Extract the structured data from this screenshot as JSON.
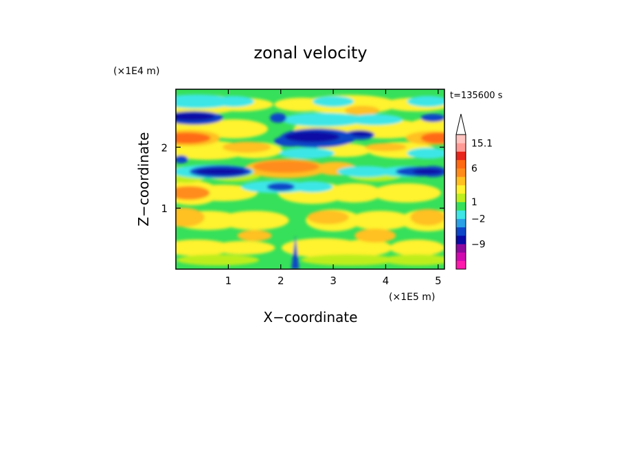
{
  "chart_data": {
    "type": "heatmap",
    "title": "zonal velocity",
    "xlabel": "X−coordinate",
    "ylabel": "Z−coordinate",
    "x_unit": "(×1E5 m)",
    "y_unit": "(×1E4 m)",
    "time_label": "t=135600 s",
    "xlim": [
      0,
      5.12
    ],
    "ylim": [
      0,
      2.95
    ],
    "x_ticks": [
      1,
      2,
      3,
      4,
      5
    ],
    "y_ticks": [
      1,
      2
    ],
    "colorbar": {
      "levels": [
        -15,
        -12,
        -9,
        -6,
        -4,
        -2,
        -1,
        1,
        2,
        3,
        4,
        6,
        9,
        12,
        15.1
      ],
      "colors": [
        "#ff1aae",
        "#d10ab0",
        "#8e0a9f",
        "#0a0aa6",
        "#0d46c8",
        "#2aa0e6",
        "#3ee6e6",
        "#36e05a",
        "#bdee1e",
        "#fff22e",
        "#ffc020",
        "#ff8c1a",
        "#ff6a12",
        "#e8261c",
        "#ff9a94",
        "#ffc4c0"
      ],
      "tick_labels": [
        "15.1",
        "6",
        "1",
        "−2",
        "−9"
      ],
      "tick_values": [
        15.1,
        6,
        1,
        -2,
        -9
      ]
    }
  }
}
